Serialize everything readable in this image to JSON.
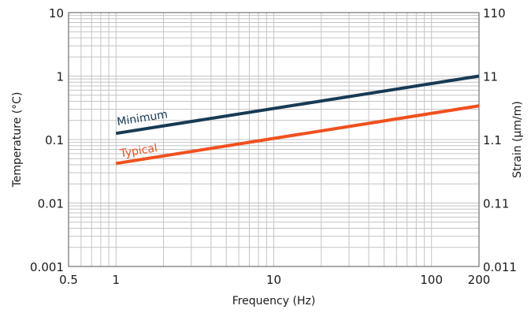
{
  "chart_data": {
    "type": "line",
    "xlabel": "Frequency (Hz)",
    "ylabel": "Temperature (°C)",
    "y2label": "Strain (µm/m)",
    "x_scale": "log",
    "y_scale": "log",
    "y2_scale": "log",
    "xlim": [
      0.5,
      200
    ],
    "ylim": [
      0.001,
      10
    ],
    "y2lim": [
      0.011,
      110
    ],
    "x_ticks": [
      0.5,
      1,
      10,
      100,
      200
    ],
    "x_tick_labels": [
      "0.5",
      "1",
      "10",
      "100",
      "200"
    ],
    "y_ticks": [
      0.001,
      0.01,
      0.1,
      1,
      10
    ],
    "y_tick_labels": [
      "0.001",
      "0.01",
      "0.1",
      "1",
      "10"
    ],
    "y2_ticks": [
      0.011,
      0.11,
      1.1,
      11,
      110
    ],
    "y2_tick_labels": [
      "0.011",
      "0.11",
      "1.1",
      "11",
      "110"
    ],
    "grid": true,
    "series": [
      {
        "name": "Minimum",
        "color": "#173a54",
        "x": [
          1,
          200
        ],
        "y": [
          0.125,
          1.0
        ]
      },
      {
        "name": "Typical",
        "color": "#f0501e",
        "x": [
          1,
          200
        ],
        "y": [
          0.042,
          0.34
        ]
      }
    ]
  }
}
